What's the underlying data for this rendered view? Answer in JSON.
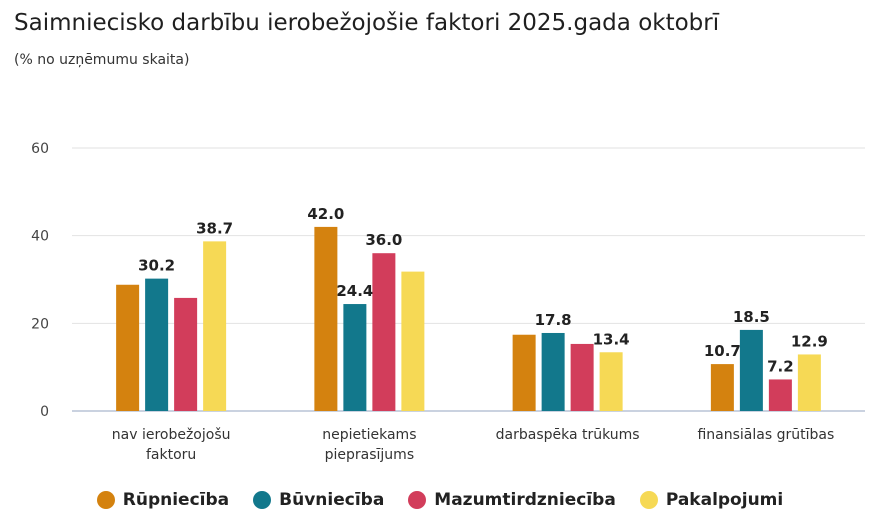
{
  "title": "Saimniecisko darbību ierobežojošie faktori 2025.gada oktobrī",
  "subtitle": "(% no uzņēmumu skaita)",
  "colors": [
    "#d4820f",
    "#12788c",
    "#d23d5b",
    "#f6d955"
  ],
  "legend": [
    {
      "label": "Rūpniecība"
    },
    {
      "label": "Būvniecība"
    },
    {
      "label": "Mazumtirdzniecība"
    },
    {
      "label": "Pakalpojumi"
    }
  ],
  "chart_data": {
    "type": "bar",
    "title": "Saimniecisko darbību ierobežojošie faktori 2025.gada oktobrī",
    "subtitle": "(% no uzņēmumu skaita)",
    "xlabel": "",
    "ylabel": "",
    "ylim": [
      0,
      60
    ],
    "yticks": [
      0,
      20,
      40,
      60
    ],
    "grid": true,
    "legend_position": "bottom",
    "categories": [
      [
        "nav ierobežojošu",
        "faktoru"
      ],
      [
        "nepietiekams",
        "pieprasījums"
      ],
      [
        "darbaspēka trūkums"
      ],
      [
        "finansiālas grūtības"
      ]
    ],
    "series": [
      {
        "name": "Rūpniecība",
        "values": [
          28.8,
          42.0,
          17.4,
          10.7
        ],
        "labels": [
          "",
          "42.0",
          "",
          "10.7"
        ]
      },
      {
        "name": "Būvniecība",
        "values": [
          30.2,
          24.4,
          17.8,
          18.5
        ],
        "labels": [
          "30.2",
          "24.4",
          "17.8",
          "18.5"
        ]
      },
      {
        "name": "Mazumtirdzniecība",
        "values": [
          25.8,
          36.0,
          15.3,
          7.2
        ],
        "labels": [
          "",
          "36.0",
          "",
          "7.2"
        ]
      },
      {
        "name": "Pakalpojumi",
        "values": [
          38.7,
          31.8,
          13.4,
          12.9
        ],
        "labels": [
          "38.7",
          "",
          "13.4",
          "12.9"
        ]
      }
    ]
  }
}
